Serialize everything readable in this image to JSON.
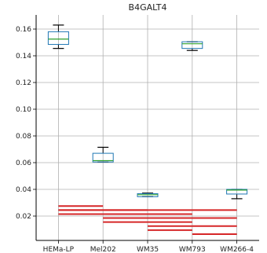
{
  "chart_data": {
    "type": "box",
    "title": "B4GALT4",
    "xlabel": "",
    "ylabel": "",
    "categories": [
      "HEMa-LP",
      "Mel202",
      "WM35",
      "WM793",
      "WM266-4"
    ],
    "ylim": [
      0.0,
      0.17
    ],
    "yticks": [
      "0.16",
      "0.14",
      "0.12",
      "0.10",
      "0.08",
      "0.06",
      "0.04",
      "0.02"
    ],
    "ytick_values": [
      0.16,
      0.14,
      0.12,
      0.1,
      0.08,
      0.06,
      0.04,
      0.02
    ],
    "grid": true,
    "boxes": [
      {
        "category": "HEMa-LP",
        "whisker_low": 0.1455,
        "q1": 0.1485,
        "median": 0.1525,
        "q3": 0.158,
        "whisker_high": 0.163
      },
      {
        "category": "Mel202",
        "whisker_low": 0.0605,
        "q1": 0.0605,
        "median": 0.0615,
        "q3": 0.067,
        "whisker_high": 0.0715
      },
      {
        "category": "WM35",
        "whisker_low": 0.0345,
        "q1": 0.0345,
        "median": 0.036,
        "q3": 0.0368,
        "whisker_high": 0.0372
      },
      {
        "category": "WM793",
        "whisker_low": 0.144,
        "q1": 0.1455,
        "median": 0.149,
        "q3": 0.1505,
        "whisker_high": 0.1505
      },
      {
        "category": "WM266-4",
        "whisker_low": 0.033,
        "q1": 0.0365,
        "median": 0.0395,
        "q3": 0.04,
        "whisker_high": 0.04
      }
    ],
    "significance_bars": [
      {
        "from": "HEMa-LP",
        "to": "Mel202",
        "y": 0.0275
      },
      {
        "from": "HEMa-LP",
        "to": "WM35",
        "y": 0.0245
      },
      {
        "from": "HEMa-LP",
        "to": "WM793",
        "y": 0.0215
      },
      {
        "from": "HEMa-LP",
        "to": "WM266-4",
        "y": 0.0245
      },
      {
        "from": "Mel202",
        "to": "WM793",
        "y": 0.0185
      },
      {
        "from": "Mel202",
        "to": "WM266-4",
        "y": 0.0185
      },
      {
        "from": "Mel202",
        "to": "WM793",
        "y": 0.0155
      },
      {
        "from": "WM35",
        "to": "WM266-4",
        "y": 0.0125
      },
      {
        "from": "WM35",
        "to": "WM793",
        "y": 0.0095
      },
      {
        "from": "WM793",
        "to": "WM266-4",
        "y": 0.0065
      }
    ],
    "colors": {
      "box": "#1f77b4",
      "median": "#2ca02c",
      "whisker": "#000000",
      "grid": "#b0b0b0",
      "significance": "#d62728"
    }
  }
}
